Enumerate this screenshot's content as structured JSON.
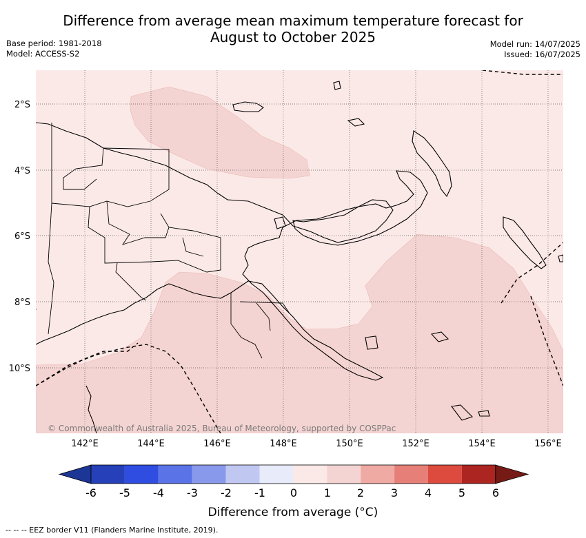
{
  "title_line1": "Difference from average mean maximum temperature forecast for",
  "title_line2": "August to October 2025",
  "base_period": "Base period: 1981-2018",
  "model": "Model: ACCESS-S2",
  "model_run": "Model run: 14/07/2025",
  "issued": "Issued: 16/07/2025",
  "copyright": "© Commonwealth of Australia 2025, Bureau of Meteorology, supported by COSPPac",
  "footnote": "--  --  -- EEZ border V11 (Flanders Marine Institute, 2019).",
  "map": {
    "region": "Papua New Guinea",
    "lon_labels": [
      "142°E",
      "144°E",
      "146°E",
      "148°E",
      "150°E",
      "152°E",
      "154°E",
      "156°E"
    ],
    "lat_labels": [
      "2°S",
      "4°S",
      "6°S",
      "8°S",
      "10°S"
    ],
    "background_color": "#fbe9e7",
    "shade_color": "#f4d4d2",
    "grid": "dotted"
  },
  "colorbar": {
    "title": "Difference from average (°C)",
    "labels": [
      "-6",
      "-5",
      "-4",
      "-3",
      "-2",
      "-1",
      "0",
      "1",
      "2",
      "3",
      "4",
      "5",
      "6"
    ],
    "colors": [
      "#1c3696",
      "#2540b8",
      "#2f4de0",
      "#5a73e6",
      "#8898ea",
      "#c0c8f2",
      "#e8ebfa",
      "#fbe9e7",
      "#f4d4d2",
      "#efaaa3",
      "#e57f77",
      "#dc4b3e",
      "#ad2521",
      "#761a16"
    ]
  }
}
